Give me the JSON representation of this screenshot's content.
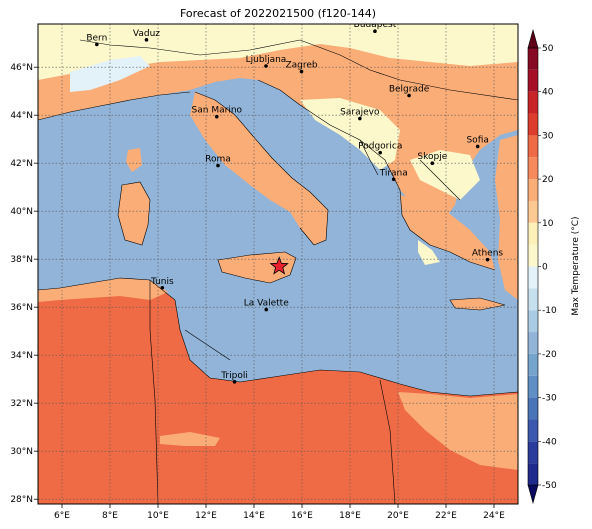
{
  "title": "Forecast of 2022021500 (f120-144)",
  "map": {
    "lon_range": [
      5,
      25
    ],
    "lat_range": [
      27.8,
      47.8
    ],
    "lon_ticks": [
      {
        "value": 6,
        "label": "6°E"
      },
      {
        "value": 8,
        "label": "8°E"
      },
      {
        "value": 10,
        "label": "10°E"
      },
      {
        "value": 12,
        "label": "12°E"
      },
      {
        "value": 14,
        "label": "14°E"
      },
      {
        "value": 16,
        "label": "16°E"
      },
      {
        "value": 18,
        "label": "18°E"
      },
      {
        "value": 20,
        "label": "20°E"
      },
      {
        "value": 22,
        "label": "22°E"
      },
      {
        "value": 24,
        "label": "24°E"
      }
    ],
    "lat_ticks": [
      {
        "value": 28,
        "label": "28°N"
      },
      {
        "value": 30,
        "label": "30°N"
      },
      {
        "value": 32,
        "label": "32°N"
      },
      {
        "value": 34,
        "label": "34°N"
      },
      {
        "value": 36,
        "label": "36°N"
      },
      {
        "value": 38,
        "label": "38°N"
      },
      {
        "value": 40,
        "label": "40°N"
      },
      {
        "value": 42,
        "label": "42°N"
      },
      {
        "value": 44,
        "label": "44°N"
      },
      {
        "value": 46,
        "label": "46°N"
      }
    ],
    "sea_color": "#91b4d8",
    "cities": [
      {
        "name": "Bern",
        "lon": 7.45,
        "lat": 46.95
      },
      {
        "name": "Vaduz",
        "lon": 9.52,
        "lat": 47.14
      },
      {
        "name": "Budapest",
        "lon": 19.04,
        "lat": 47.5
      },
      {
        "name": "Ljubljana",
        "lon": 14.5,
        "lat": 46.05
      },
      {
        "name": "Zagreb",
        "lon": 15.98,
        "lat": 45.82
      },
      {
        "name": "Belgrade",
        "lon": 20.46,
        "lat": 44.82
      },
      {
        "name": "San Marino",
        "lon": 12.45,
        "lat": 43.94
      },
      {
        "name": "Sarajevo",
        "lon": 18.41,
        "lat": 43.86
      },
      {
        "name": "Sofia",
        "lon": 23.32,
        "lat": 42.7
      },
      {
        "name": "Podgorica",
        "lon": 19.26,
        "lat": 42.44
      },
      {
        "name": "Skopje",
        "lon": 21.43,
        "lat": 42.0
      },
      {
        "name": "Roma",
        "lon": 12.5,
        "lat": 41.9
      },
      {
        "name": "Tirana",
        "lon": 19.82,
        "lat": 41.33
      },
      {
        "name": "Athens",
        "lon": 23.73,
        "lat": 37.98
      },
      {
        "name": "Tunis",
        "lon": 10.18,
        "lat": 36.81
      },
      {
        "name": "La Valette",
        "lon": 14.51,
        "lat": 35.9
      },
      {
        "name": "Tripoli",
        "lon": 13.19,
        "lat": 32.89
      }
    ],
    "marker": {
      "symbol": "star",
      "lon": 15.05,
      "lat": 37.7,
      "color": "#e8202a"
    }
  },
  "colorbar": {
    "label": "Max Temperature (°C)",
    "ticks": [
      "-50",
      "-40",
      "-30",
      "-20",
      "-10",
      "0",
      "10",
      "20",
      "30",
      "40",
      "50"
    ],
    "range": [
      -50,
      50
    ],
    "bins": [
      {
        "from": -55,
        "to": -50,
        "color": "#0a0a5e"
      },
      {
        "from": -50,
        "to": -45,
        "color": "#1f2a8c"
      },
      {
        "from": -45,
        "to": -40,
        "color": "#2b3c9c"
      },
      {
        "from": -40,
        "to": -35,
        "color": "#3a58ad"
      },
      {
        "from": -35,
        "to": -30,
        "color": "#4a74b8"
      },
      {
        "from": -30,
        "to": -25,
        "color": "#5f8fc4"
      },
      {
        "from": -25,
        "to": -20,
        "color": "#75a4cd"
      },
      {
        "from": -20,
        "to": -15,
        "color": "#91b4d8"
      },
      {
        "from": -15,
        "to": -10,
        "color": "#a9cbe3"
      },
      {
        "from": -10,
        "to": -5,
        "color": "#c6e0ee"
      },
      {
        "from": -5,
        "to": 0,
        "color": "#e2f2f8"
      },
      {
        "from": 0,
        "to": 5,
        "color": "#fdf8cc"
      },
      {
        "from": 5,
        "to": 10,
        "color": "#fdf0b8"
      },
      {
        "from": 10,
        "to": 15,
        "color": "#fdc992"
      },
      {
        "from": 15,
        "to": 20,
        "color": "#fbad78"
      },
      {
        "from": 20,
        "to": 25,
        "color": "#f68a5c"
      },
      {
        "from": 25,
        "to": 30,
        "color": "#ef6b45"
      },
      {
        "from": 30,
        "to": 35,
        "color": "#dd3d2d"
      },
      {
        "from": 35,
        "to": 40,
        "color": "#c82428"
      },
      {
        "from": 40,
        "to": 45,
        "color": "#a51026"
      },
      {
        "from": 45,
        "to": 50,
        "color": "#870a24"
      },
      {
        "from": 50,
        "to": 55,
        "color": "#5e0018"
      }
    ]
  }
}
